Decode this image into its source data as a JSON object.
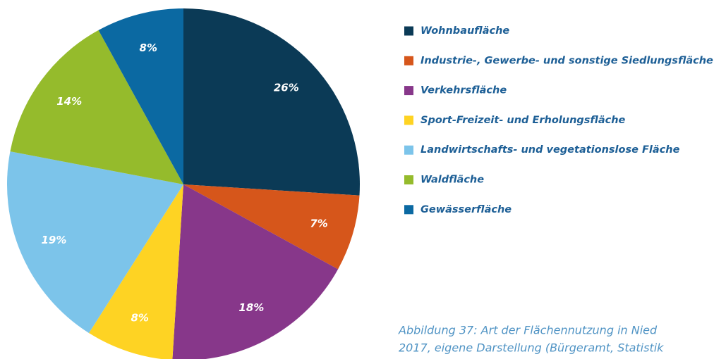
{
  "chart_data": {
    "type": "pie",
    "categories": [
      "Wohnbaufläche",
      "Industrie-, Gewerbe- und sonstige Siedlungsfläche",
      "Verkehrsfläche",
      "Sport-Freizeit- und Erholungsfläche",
      "Landwirtschafts- und vegetationslose Fläche",
      "Waldfläche",
      "Gewässerfläche"
    ],
    "values": [
      26,
      7,
      18,
      8,
      19,
      14,
      8
    ],
    "value_labels": [
      "26%",
      "7%",
      "18%",
      "8%",
      "19%",
      "14%",
      "8%"
    ],
    "colors": [
      "#0b3a56",
      "#d6561b",
      "#87378a",
      "#fed323",
      "#7cc4ea",
      "#95bb2c",
      "#0b69a2"
    ],
    "legend": "right",
    "caption": [
      "Abbildung 37: Art der Flächennutzung in Nied",
      "2017, eigene Darstellung (Bürgeramt, Statistik"
    ]
  }
}
